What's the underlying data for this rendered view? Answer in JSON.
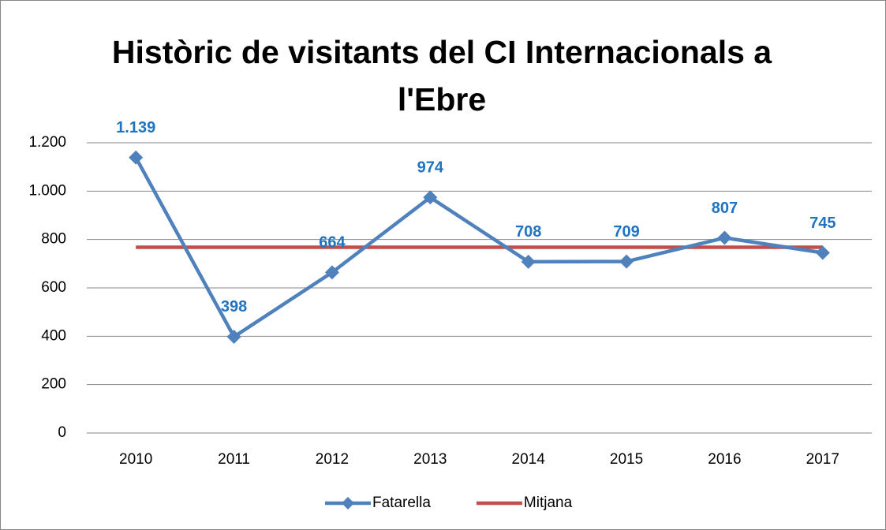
{
  "chart_data": {
    "type": "line",
    "title": "Històric de visitants del CI Internacionals a l'Ebre",
    "categories": [
      "2010",
      "2011",
      "2012",
      "2013",
      "2014",
      "2015",
      "2016",
      "2017"
    ],
    "series": [
      {
        "name": "Fatarella",
        "color": "#4f81bd",
        "marker": "diamond",
        "values": [
          1139,
          398,
          664,
          974,
          708,
          709,
          807,
          745
        ],
        "value_labels": [
          "1.139",
          "398",
          "664",
          "974",
          "708",
          "709",
          "807",
          "745"
        ],
        "label_color": "#1f73c0"
      },
      {
        "name": "Mitjana",
        "color": "#c0504d",
        "values": [
          768,
          768,
          768,
          768,
          768,
          768,
          768,
          768
        ]
      }
    ],
    "ylim": [
      0,
      1200
    ],
    "yticks": [
      0,
      200,
      400,
      600,
      800,
      {
        "value": 1000,
        "label": "1.000"
      },
      {
        "value": 1200,
        "label": "1.200"
      }
    ],
    "grid": true,
    "legend": "bottom"
  }
}
